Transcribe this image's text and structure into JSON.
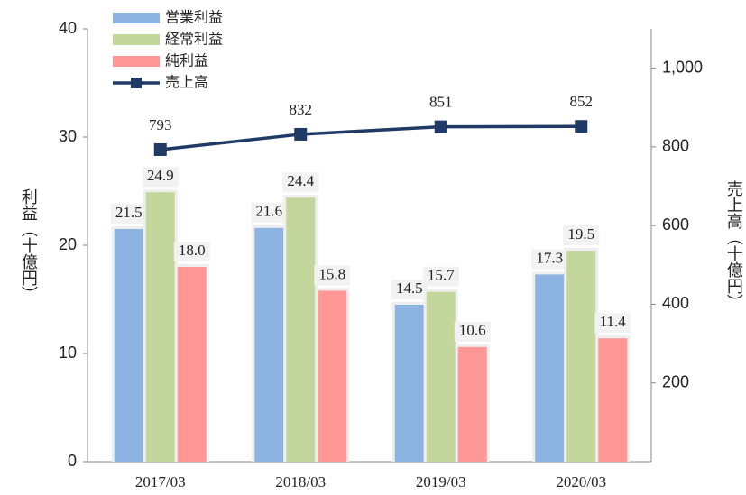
{
  "chart_data": {
    "type": "bar-line",
    "categories": [
      "2017/03",
      "2018/03",
      "2019/03",
      "2020/03"
    ],
    "series": [
      {
        "name": "営業利益",
        "color": "#8db3e2",
        "values": [
          21.5,
          21.6,
          14.5,
          17.3
        ],
        "value_labels": [
          "21.5",
          "21.6",
          "14.5",
          "17.3"
        ]
      },
      {
        "name": "経常利益",
        "color": "#c3d69b",
        "values": [
          24.9,
          24.4,
          15.7,
          19.5
        ],
        "value_labels": [
          "24.9",
          "24.4",
          "15.7",
          "19.5"
        ]
      },
      {
        "name": "純利益",
        "color": "#ff9797",
        "values": [
          18.0,
          15.8,
          10.6,
          11.4
        ],
        "value_labels": [
          "18.0",
          "15.8",
          "10.6",
          "11.4"
        ]
      },
      {
        "name": "売上高",
        "color": "#1f3a64",
        "axis": "y2",
        "values": [
          793,
          832,
          851,
          852
        ]
      }
    ],
    "ylabel": "利益（十億円）",
    "y2label": "売上高（十億円）",
    "ylim": [
      0,
      40
    ],
    "yticks": [
      0,
      10,
      20,
      30,
      40
    ],
    "y2lim": [
      0,
      1100
    ],
    "y2ticks": [
      200,
      400,
      600,
      800,
      {
        "value": 1000,
        "label": "1,000"
      }
    ],
    "legend": "upper-left"
  }
}
